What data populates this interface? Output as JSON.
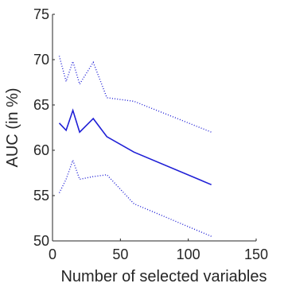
{
  "chart_data": {
    "type": "line",
    "xlabel": "Number of selected variables",
    "ylabel": "AUC (in %)",
    "xlim": [
      0,
      150
    ],
    "ylim": [
      50,
      75
    ],
    "xticks": [
      0,
      50,
      100,
      150
    ],
    "yticks": [
      50,
      55,
      60,
      65,
      70,
      75
    ],
    "grid": false,
    "legend": "none",
    "series": [
      {
        "style": "solid",
        "color": "#1f1fd6",
        "x": [
          5,
          10,
          15,
          20,
          30,
          40,
          60,
          117
        ],
        "y": [
          63.0,
          62.2,
          64.4,
          62.0,
          63.5,
          61.5,
          59.8,
          56.2
        ]
      },
      {
        "style": "dotted",
        "color": "#1f1fd6",
        "x": [
          5,
          10,
          15,
          20,
          30,
          40,
          60,
          117
        ],
        "y": [
          70.4,
          67.6,
          69.8,
          67.3,
          69.7,
          65.8,
          65.4,
          62.0
        ]
      },
      {
        "style": "dotted",
        "color": "#1f1fd6",
        "x": [
          5,
          10,
          15,
          20,
          30,
          40,
          60,
          117
        ],
        "y": [
          55.3,
          56.8,
          58.9,
          56.8,
          57.1,
          57.3,
          54.1,
          50.5
        ]
      }
    ]
  }
}
